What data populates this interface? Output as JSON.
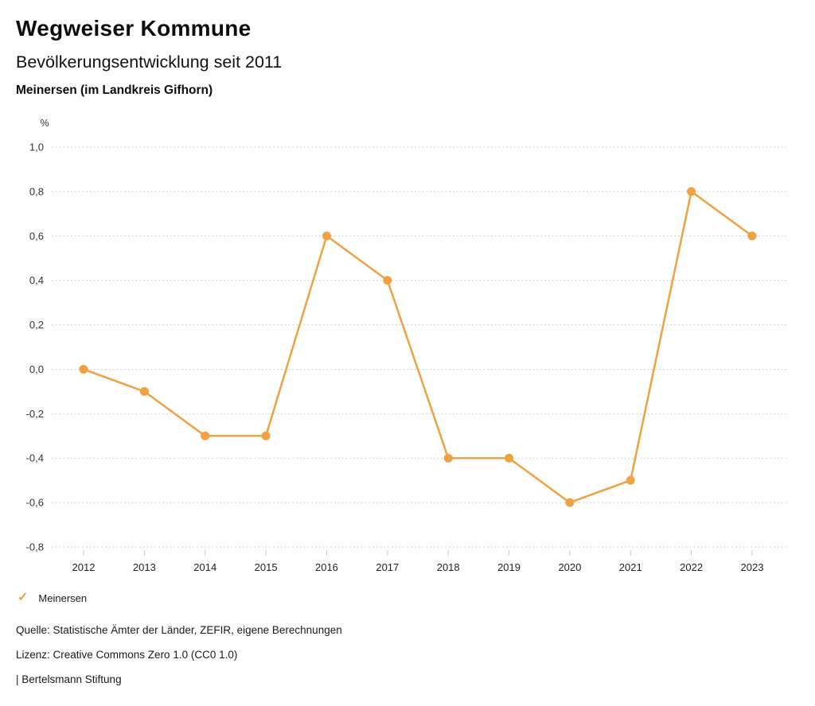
{
  "header": {
    "title": "Wegweiser Kommune",
    "subtitle": "Bevölkerungsentwicklung seit 2011",
    "region": "Meinersen (im Landkreis Gifhorn)"
  },
  "chart_data": {
    "type": "line",
    "title": "Bevölkerungsentwicklung seit 2011",
    "unit_label": "%",
    "x": [
      2012,
      2013,
      2014,
      2015,
      2016,
      2017,
      2018,
      2019,
      2020,
      2021,
      2022,
      2023
    ],
    "series": [
      {
        "name": "Meinersen",
        "values": [
          0.0,
          -0.1,
          -0.3,
          -0.3,
          0.6,
          0.4,
          -0.4,
          -0.4,
          -0.6,
          -0.5,
          0.8,
          0.6
        ],
        "color": "#F0A141"
      }
    ],
    "ylim": [
      -0.8,
      1.0
    ],
    "ytick_step": 0.2,
    "grid": "dotted-horizontal",
    "legend_position": "bottom-left",
    "decimal_separator": ","
  },
  "legend": {
    "items": [
      {
        "label": "Meinersen",
        "checked": true,
        "color": "#F0A141"
      }
    ]
  },
  "icons": {
    "legend_check": "✓"
  },
  "footer": {
    "source": "Quelle: Statistische Ämter der Länder, ZEFIR, eigene Berechnungen",
    "license": "Lizenz: Creative Commons Zero 1.0 (CC0 1.0)",
    "attribution": "| Bertelsmann Stiftung"
  },
  "colors": {
    "accent": "#F0A141",
    "grid": "#C7C7C7",
    "text": "#1A1A1A",
    "tick_text": "#333333"
  }
}
